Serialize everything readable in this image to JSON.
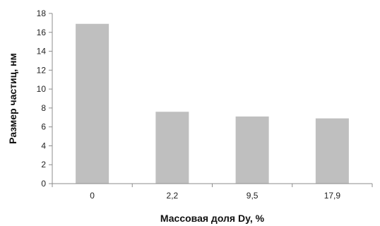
{
  "chart_data": {
    "type": "bar",
    "categories": [
      "0",
      "2,2",
      "9,5",
      "17,9"
    ],
    "values": [
      16.9,
      7.6,
      7.1,
      6.9
    ],
    "title": "",
    "xlabel": "Массовая доля Dy, %",
    "ylabel": "Размер частиц, нм",
    "ylim": [
      0,
      18
    ],
    "yticks": [
      "0",
      "2",
      "4",
      "6",
      "8",
      "10",
      "12",
      "14",
      "16",
      "18"
    ],
    "grid": false,
    "legend": "none",
    "colors": {
      "bar": "#bfbfbf",
      "axis": "#8c8c8c",
      "text": "#222222"
    }
  }
}
